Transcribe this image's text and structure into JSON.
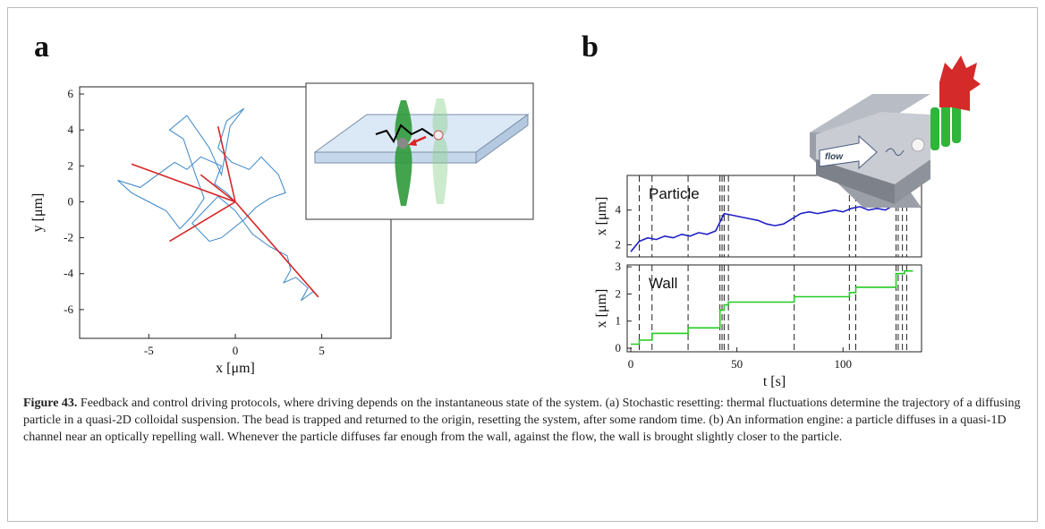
{
  "figure": {
    "panel_labels": [
      "a",
      "b"
    ],
    "inset_label": "flow",
    "caption_label": "Figure 43.",
    "caption": "Feedback and control driving protocols, where driving depends on the instantaneous state of the system. (a) Stochastic resetting: thermal fluctuations determine the trajectory of a diffusing particle in a quasi-2D colloidal suspension. The bead is trapped and returned to the origin, resetting the system, after some random time. (b) An information engine: a particle diffuses in a quasi-1D channel near an optically repelling wall. Whenever the particle diffuses far enough from the wall, against the flow, the wall is brought slightly closer to the particle."
  },
  "chart_data": [
    {
      "type": "line",
      "xlabel": "x [μm]",
      "ylabel": "y [μm]",
      "xlim": [
        -9,
        9
      ],
      "ylim": [
        -7.6,
        6.4
      ],
      "xticks": [
        -5,
        0,
        5
      ],
      "yticks": [
        -6,
        -4,
        -2,
        0,
        2,
        4,
        6
      ],
      "series": [
        {
          "color": "#3a86c8",
          "x": [
            0,
            -0.5,
            -1.2,
            -0.8,
            -2,
            -2.8,
            -3.5,
            -4.5,
            -5.5,
            -6.8,
            -6,
            -5,
            -4,
            -3.2,
            -2.5,
            -1.8,
            -2.3,
            -3,
            -3.8,
            -2.8,
            -1.5,
            -0.8,
            -0.3,
            0.5,
            -0.5,
            -1,
            -0.2,
            0.8,
            1.5,
            2.5,
            2.9,
            2,
            1.2,
            0.5,
            -0.8,
            -1.5,
            -2.5,
            -1.8,
            -1,
            0,
            1,
            2,
            3,
            3.2,
            2.8,
            3.5,
            4.2,
            3.8,
            4.5,
            4.8
          ],
          "values": [
            0,
            0.5,
            1,
            2,
            2.5,
            1.8,
            2.2,
            1.5,
            0.8,
            1.2,
            0.5,
            0,
            -0.5,
            -1.5,
            -0.8,
            0.2,
            1.5,
            3.5,
            4,
            4.8,
            3,
            1.5,
            4.2,
            5.2,
            4.5,
            3,
            2.2,
            1.8,
            2.5,
            1.5,
            0.5,
            0.2,
            -0.3,
            -1,
            -2,
            -2.2,
            -1.2,
            -0.5,
            0.3,
            -0.5,
            -1.8,
            -2.5,
            -3,
            -3.8,
            -4.5,
            -4.2,
            -4.8,
            -5.5,
            -5,
            -5.3
          ]
        },
        {
          "color": "#d62728",
          "x": [
            0,
            -6,
            null,
            0,
            -3.8,
            null,
            0,
            4.8,
            null,
            0,
            -1,
            null,
            0,
            -2
          ],
          "values": [
            0,
            2.1,
            null,
            0,
            -2.2,
            null,
            0,
            -5.3,
            null,
            0,
            4.2,
            null,
            0,
            1.5
          ]
        }
      ]
    },
    {
      "type": "line",
      "annotation": "Particle",
      "ylabel": "x [μm]",
      "xlim": [
        -1.7,
        137
      ],
      "ylim": [
        1.3,
        6
      ],
      "yticks": [
        2,
        4
      ],
      "vlines": [
        4,
        10,
        27,
        42,
        43,
        44,
        46,
        77,
        103,
        106,
        125,
        126,
        128,
        130
      ],
      "series": [
        {
          "color": "#1f1fc8",
          "x": [
            0,
            4,
            8,
            12,
            16,
            20,
            24,
            28,
            32,
            36,
            40,
            44,
            48,
            52,
            56,
            60,
            64,
            68,
            72,
            76,
            80,
            84,
            88,
            92,
            96,
            100,
            104,
            108,
            112,
            116,
            120,
            124,
            128,
            132
          ],
          "values": [
            1.6,
            2.2,
            2.4,
            2.3,
            2.5,
            2.4,
            2.6,
            2.5,
            2.7,
            2.6,
            2.8,
            3.8,
            3.7,
            3.6,
            3.5,
            3.4,
            3.2,
            3.1,
            3.2,
            3.5,
            3.8,
            3.9,
            3.8,
            3.9,
            4.0,
            3.9,
            4.1,
            4.2,
            4.0,
            4.1,
            4.0,
            4.3,
            4.8,
            5.4
          ]
        }
      ]
    },
    {
      "type": "line",
      "annotation": "Wall",
      "xlabel": "t [s]",
      "ylabel": "x [μm]",
      "xlim": [
        -1.7,
        137
      ],
      "ylim": [
        -0.13,
        3.07
      ],
      "xticks": [
        0,
        50,
        100
      ],
      "yticks": [
        0,
        1,
        2,
        3
      ],
      "vlines": [
        4,
        10,
        27,
        42,
        43,
        44,
        46,
        77,
        103,
        106,
        125,
        126,
        128,
        130
      ],
      "series": [
        {
          "color": "#22cc22",
          "x": [
            0,
            4,
            4,
            10,
            10,
            27,
            27,
            42,
            42,
            44,
            44,
            46,
            46,
            77,
            77,
            103,
            103,
            106,
            106,
            125,
            125,
            129,
            129,
            133
          ],
          "values": [
            0.15,
            0.15,
            0.3,
            0.3,
            0.55,
            0.55,
            0.75,
            0.75,
            1.4,
            1.4,
            1.6,
            1.6,
            1.7,
            1.7,
            1.9,
            1.9,
            2.05,
            2.05,
            2.25,
            2.25,
            2.75,
            2.75,
            2.85,
            2.85
          ]
        }
      ]
    }
  ]
}
